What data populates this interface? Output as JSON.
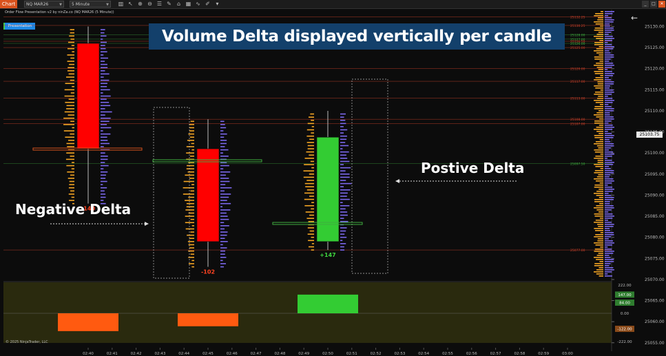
{
  "toolbar": {
    "chart_tab": "Chart",
    "instrument": "NQ MAR26",
    "interval": "5 Minute",
    "icons": [
      "bar-chart-icon",
      "pointer-icon",
      "zoom-in-icon",
      "zoom-out-icon",
      "edit-properties-icon",
      "strategies-icon",
      "templates-icon",
      "indicators-icon",
      "analysis-icon",
      "draw-icon"
    ],
    "window_buttons": {
      "minimize": "_",
      "maximize": "□",
      "close": "✕"
    }
  },
  "header": {
    "title": "Order Flow Presentation v2 by ninZa.co (NQ MAR26 (5 Minute))",
    "presentation_badge": "Presentation"
  },
  "banner": "Volume Delta displayed vertically per candle",
  "annotations": {
    "negative_delta": "Negative Delta",
    "positive_delta": "Postive Delta"
  },
  "price_axis": {
    "labels": [
      "25130.00",
      "25125.00",
      "25120.00",
      "25115.00",
      "25110.00",
      "25105.00",
      "25100.00",
      "25095.00",
      "25090.00",
      "25085.00",
      "25080.00",
      "25075.00",
      "25070.00",
      "25065.00",
      "25060.00",
      "25055.00"
    ],
    "current_price": "25103.75",
    "range": [
      25053,
      25134
    ]
  },
  "level_lines": [
    {
      "label": "25132.25",
      "color": "#c8402a"
    },
    {
      "label": "25130.25",
      "color": "#c8402a"
    },
    {
      "label": "25128.00",
      "color": "#3fae3f"
    },
    {
      "label": "25127.00",
      "color": "#3fae3f"
    },
    {
      "label": "25126.50",
      "color": "#c8402a"
    },
    {
      "label": "25126.00",
      "color": "#3fae3f"
    },
    {
      "label": "25125.00",
      "color": "#c8402a"
    },
    {
      "label": "25120.00",
      "color": "#c8402a"
    },
    {
      "label": "25117.00",
      "color": "#c8402a"
    },
    {
      "label": "25113.00",
      "color": "#c8402a"
    },
    {
      "label": "25108.00",
      "color": "#c8402a"
    },
    {
      "label": "25107.00",
      "color": "#c8402a"
    },
    {
      "label": "25097.50",
      "color": "#3fae3f"
    },
    {
      "label": "25077.00",
      "color": "#c8402a"
    }
  ],
  "chart_data": {
    "type": "candlestick",
    "instrument": "NQ MAR26",
    "interval": "5 Minute",
    "candles": [
      {
        "open": 25126,
        "high": 25130,
        "low": 25088,
        "close": 25101,
        "delta": "-140",
        "delta_color": "#ff4422"
      },
      {
        "open": 25101,
        "high": 25108,
        "low": 25073,
        "close": 25079,
        "delta": "-102",
        "delta_color": "#ff4422"
      },
      {
        "open": 25079,
        "high": 25110,
        "low": 25077,
        "close": 25103.75,
        "delta": "+147",
        "delta_color": "#3fd53f"
      }
    ],
    "delta_histogram": {
      "values": [
        -140,
        -102,
        147
      ],
      "range": [
        -222,
        222
      ],
      "axis_labels": [
        "222.00",
        "147.00",
        "84.00",
        "0.00",
        "-122.00",
        "-222.00"
      ]
    },
    "time_axis": [
      "02:40",
      "02:41",
      "02:42",
      "02:43",
      "02:44",
      "02:45",
      "02:46",
      "02:47",
      "02:48",
      "02:49",
      "02:50",
      "02:51",
      "02:52",
      "02:53",
      "02:54",
      "02:55",
      "02:56",
      "02:57",
      "02:58",
      "02:59",
      "03:00"
    ]
  },
  "colors": {
    "bearish": "#ff0000",
    "bullish": "#33cc33",
    "buy_volume": "#7b68ee",
    "sell_volume": "#f5a623",
    "banner": "#13406b",
    "delta_negative": "#ff5a10",
    "delta_positive": "#33cc33"
  },
  "footer": {
    "copyright": "© 2025 NinjaTrader, LLC"
  }
}
